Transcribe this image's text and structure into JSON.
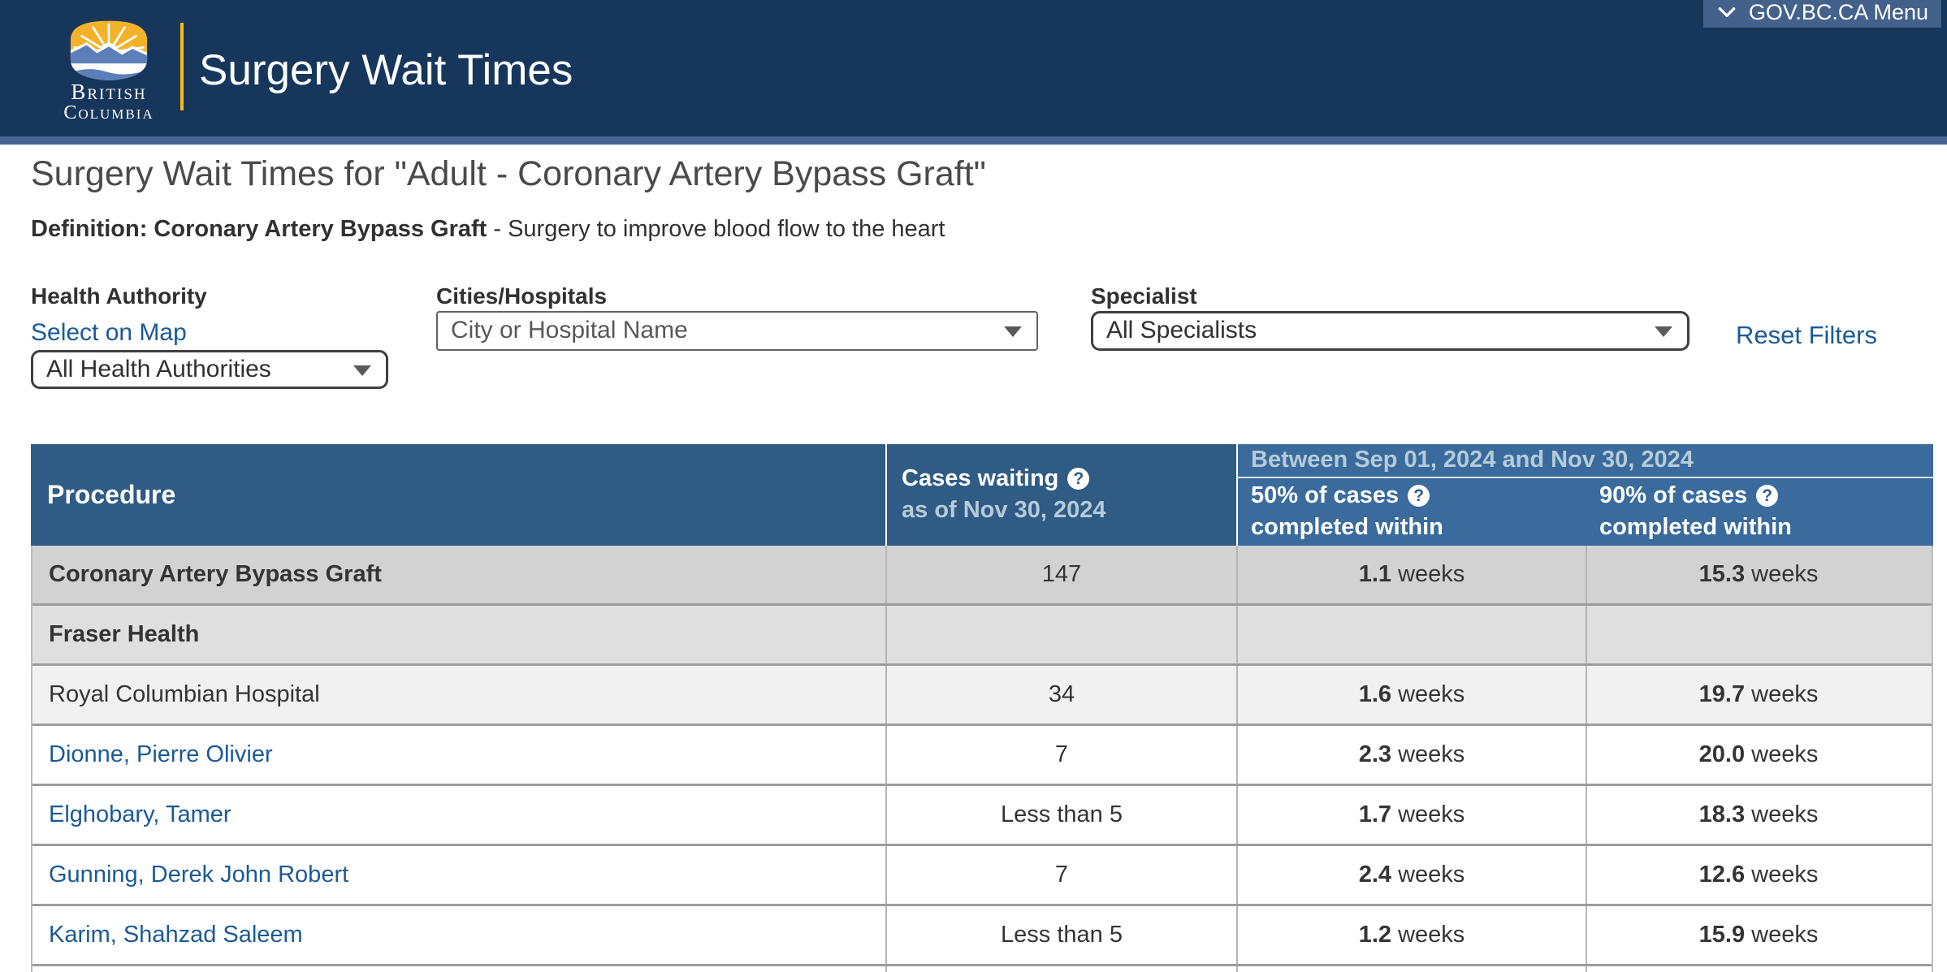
{
  "banner": {
    "brand_title": "Surgery Wait Times",
    "logo_caption_line1": "British",
    "logo_caption_line2": "Columbia",
    "menu_button_label": "GOV.BC.CA Menu"
  },
  "page": {
    "title": "Surgery Wait Times for \"Adult - Coronary Artery Bypass Graft\"",
    "definition_bold": "Definition: Coronary Artery Bypass Graft",
    "definition_rest": " - Surgery to improve blood flow to the heart"
  },
  "filters": {
    "health_authority_label": "Health Authority",
    "select_on_map_label": "Select on Map",
    "health_authority_selected": "All Health Authorities",
    "cities_hospitals_label": "Cities/Hospitals",
    "cities_hospitals_selected": "City or Hospital Name",
    "specialist_label": "Specialist",
    "specialist_selected": "All Specialists",
    "reset_label": "Reset Filters"
  },
  "table": {
    "header": {
      "procedure": "Procedure",
      "cases_waiting": "Cases waiting",
      "cases_waiting_sub": "as of Nov 30, 2024",
      "period": "Between Sep 01, 2024 and Nov 30, 2024",
      "p50_line1": "50% of cases",
      "p50_line2": "completed within",
      "p90_line1": "90% of cases",
      "p90_line2": "completed within",
      "help_icon_glyph": "?"
    },
    "unit": "weeks",
    "rows": [
      {
        "kind": "procedure",
        "name": "Coronary Artery Bypass Graft",
        "link": false,
        "cases": "147",
        "p50": "1.1",
        "p90": "15.3"
      },
      {
        "kind": "authority",
        "name": "Fraser Health",
        "link": false,
        "cases": "",
        "p50": "",
        "p90": ""
      },
      {
        "kind": "hospital",
        "name": "Royal Columbian Hospital",
        "link": false,
        "cases": "34",
        "p50": "1.6",
        "p90": "19.7"
      },
      {
        "kind": "doctor",
        "name": "Dionne, Pierre Olivier",
        "link": true,
        "cases": "7",
        "p50": "2.3",
        "p90": "20.0"
      },
      {
        "kind": "doctor",
        "name": "Elghobary, Tamer",
        "link": true,
        "cases": "Less than 5",
        "p50": "1.7",
        "p90": "18.3"
      },
      {
        "kind": "doctor",
        "name": "Gunning, Derek John Robert",
        "link": true,
        "cases": "7",
        "p50": "2.4",
        "p90": "12.6"
      },
      {
        "kind": "doctor",
        "name": "Karim, Shahzad Saleem",
        "link": true,
        "cases": "Less than 5",
        "p50": "1.2",
        "p90": "15.9"
      },
      {
        "kind": "empty",
        "name": "",
        "link": false,
        "cases": "",
        "p50": "",
        "p90": ""
      }
    ]
  },
  "colors": {
    "banner_navy": "#17365C",
    "banner_strip": "#4A6593",
    "menu_button_bg": "#44618C",
    "gold_accent": "#FCBA19",
    "table_header_dark": "#2F5B84",
    "table_header_light": "#3A6B9C",
    "muted_header_text": "#B6CBD9",
    "link_blue": "#1A5A96"
  }
}
